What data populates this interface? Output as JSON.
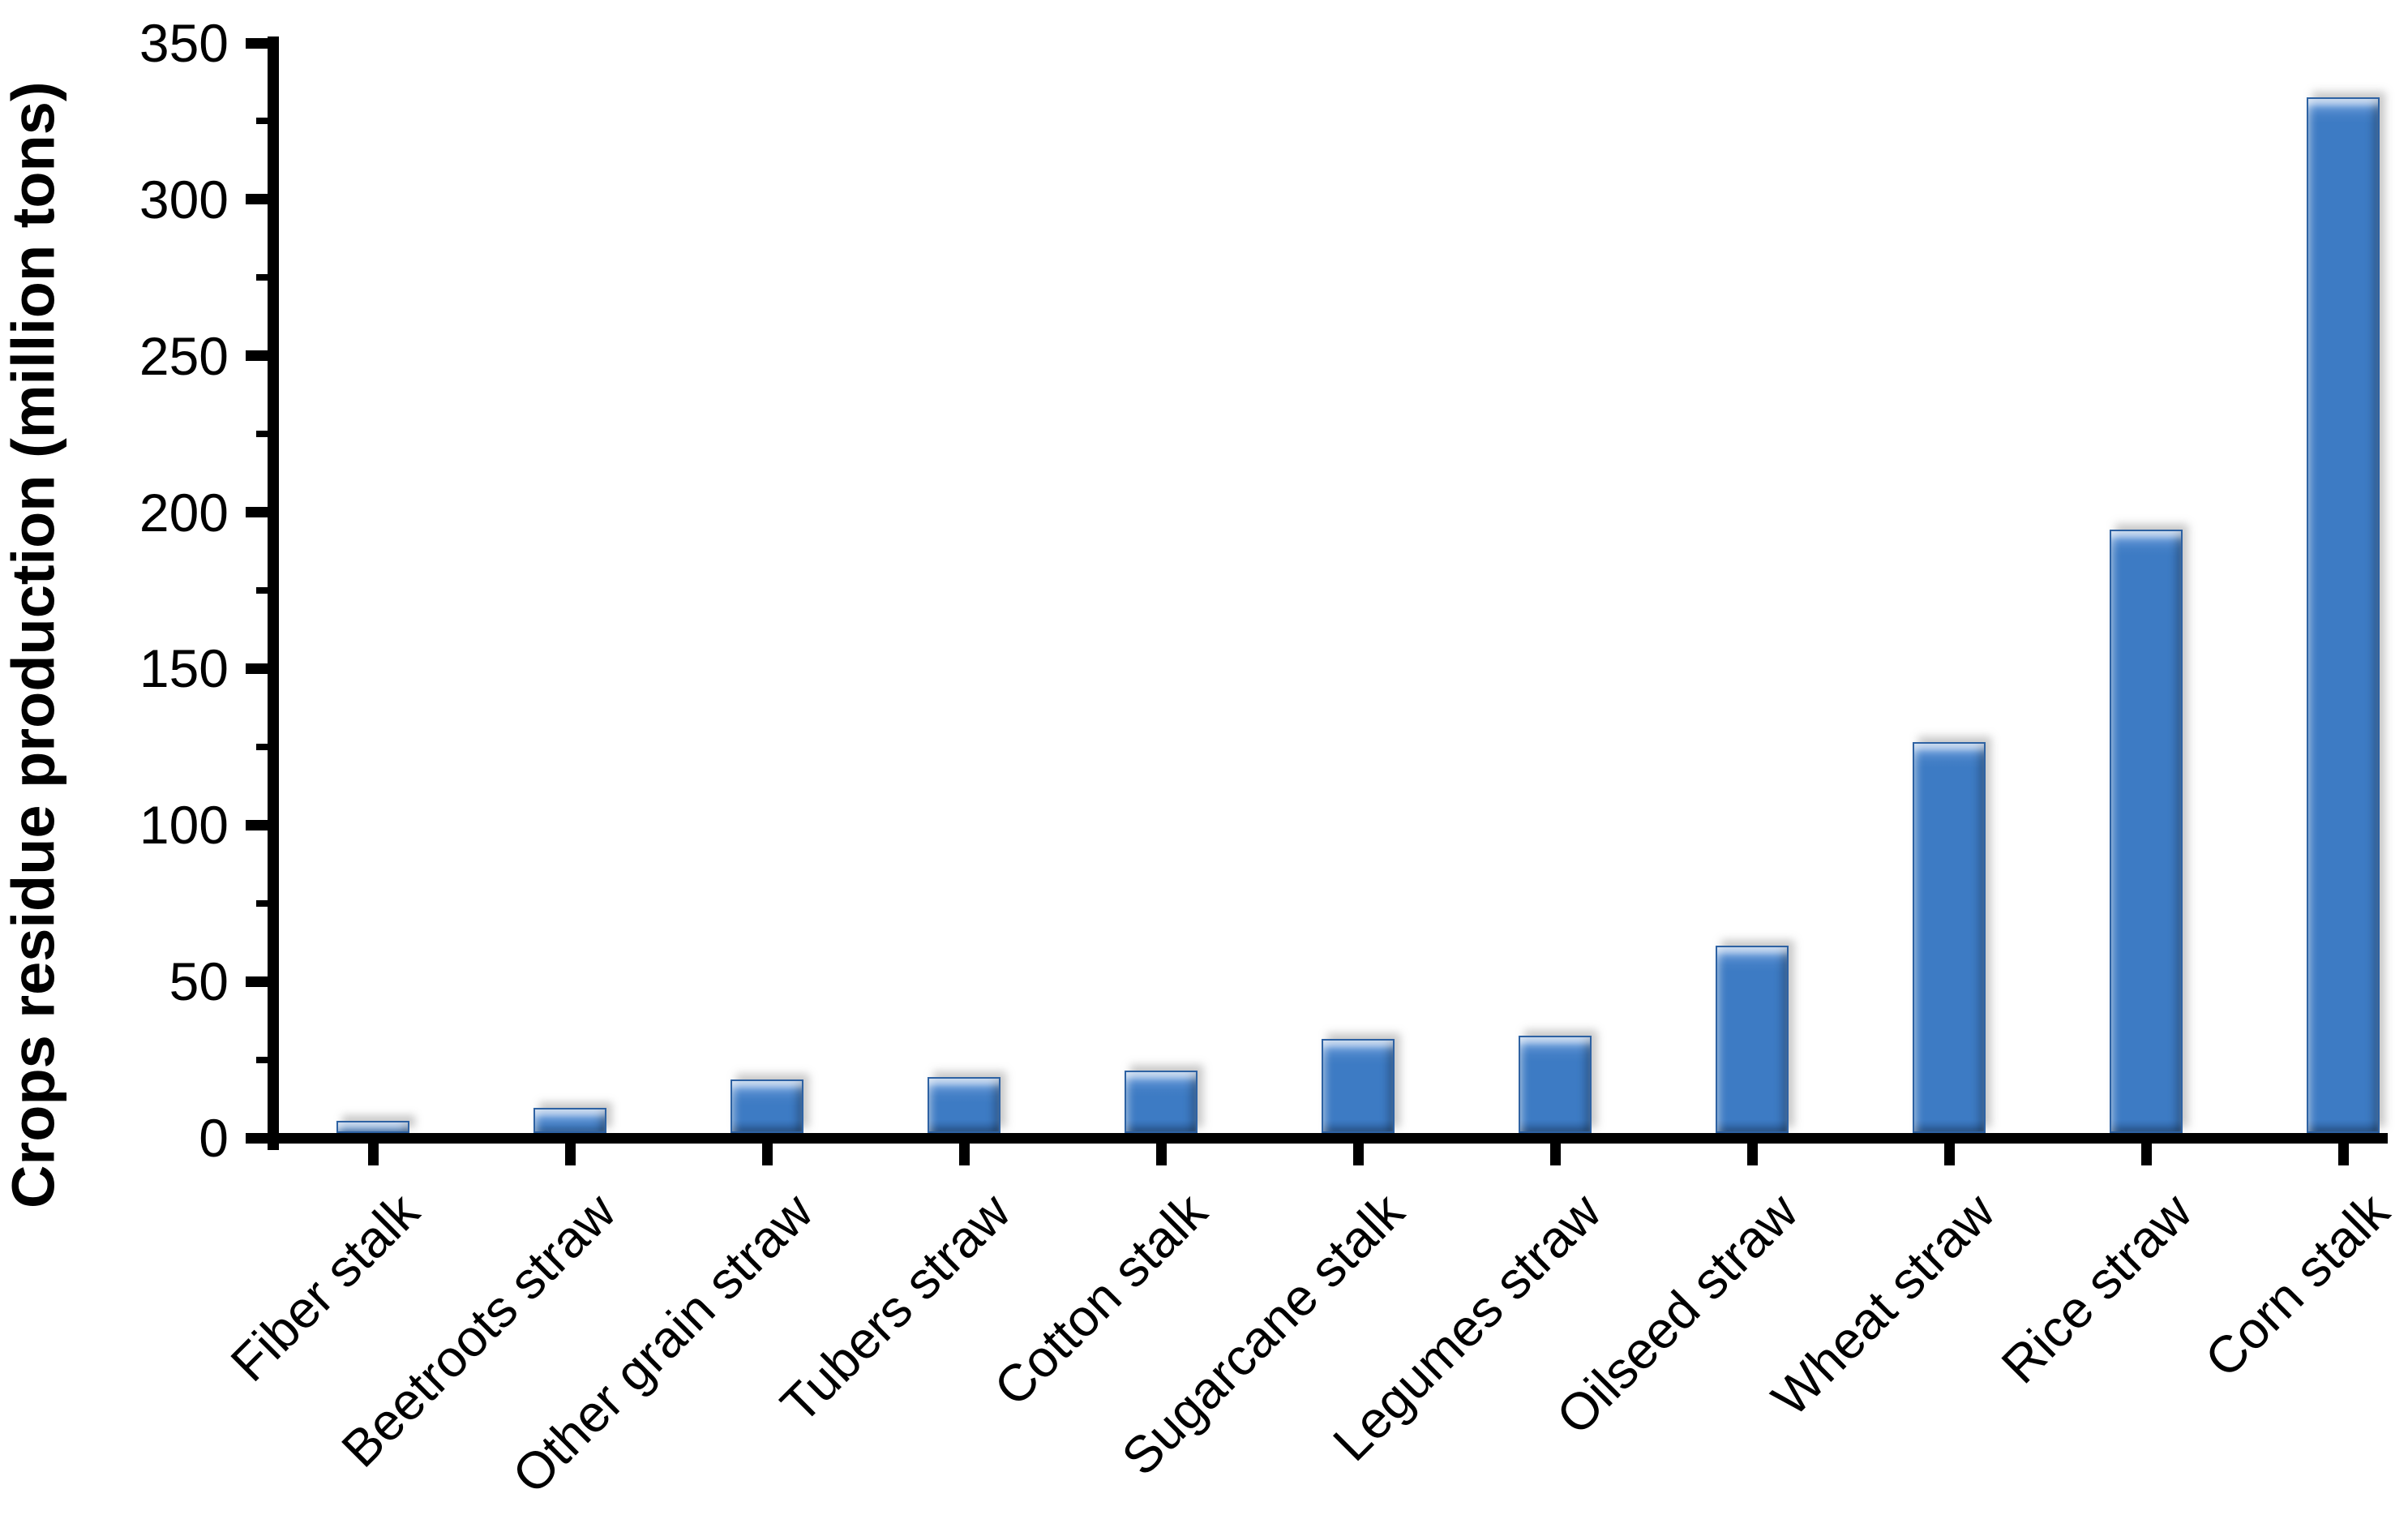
{
  "chart_data": {
    "type": "bar",
    "title": "",
    "xlabel": "",
    "ylabel": "Crops residue production (million tons)",
    "categories": [
      "Fiber stalk",
      "Beetroots straw",
      "Other grain straw",
      "Tubers straw",
      "Cotton stalk",
      "Sugarcane stalk",
      "Legumes straw",
      "Oilseed straw",
      "Wheat straw",
      "Rice straw",
      "Corn stalk"
    ],
    "values": [
      4,
      8,
      17,
      18,
      20,
      30,
      31,
      60,
      125,
      193,
      331
    ],
    "ylim": [
      0,
      350
    ],
    "yticks": [
      0,
      50,
      100,
      150,
      200,
      250,
      300,
      350
    ],
    "ytick_minor_interval": 25,
    "grid": "off",
    "legend": "none",
    "bar_color": "#3d7bc4",
    "bar_edge_color": "#2e62a3",
    "axis_color": "#000000",
    "category_label_rotation_deg": -45
  }
}
